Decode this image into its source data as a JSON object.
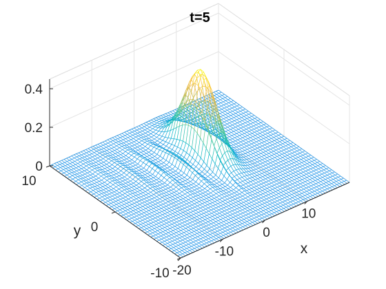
{
  "chart_data": {
    "type": "surface",
    "title": "t=5",
    "xlabel": "x",
    "ylabel": "y",
    "zlabel": "",
    "xlim": [
      -20,
      20
    ],
    "ylim": [
      -10,
      10
    ],
    "zlim": [
      0,
      0.45
    ],
    "x_ticks": [
      {
        "value": -20,
        "label": "-20"
      },
      {
        "value": -10,
        "label": "-10"
      },
      {
        "value": 0,
        "label": "0"
      },
      {
        "value": 10,
        "label": "10"
      }
    ],
    "y_ticks": [
      {
        "value": -10,
        "label": "-10"
      },
      {
        "value": 0,
        "label": "0"
      },
      {
        "value": 10,
        "label": "10"
      }
    ],
    "z_ticks": [
      {
        "value": 0,
        "label": "0"
      },
      {
        "value": 0.2,
        "label": "0.2"
      },
      {
        "value": 0.4,
        "label": "0.4"
      }
    ],
    "grid": true,
    "colormap": "parula",
    "colormap_colors": [
      "#3e26a8",
      "#2e84f7",
      "#00b5c7",
      "#4bc995",
      "#c1bb55",
      "#f8ba3d",
      "#f9fb15"
    ],
    "peak": {
      "x": 5,
      "y": 3,
      "z": 0.42
    },
    "ripples": "decaying oscillations trailing toward negative x"
  }
}
